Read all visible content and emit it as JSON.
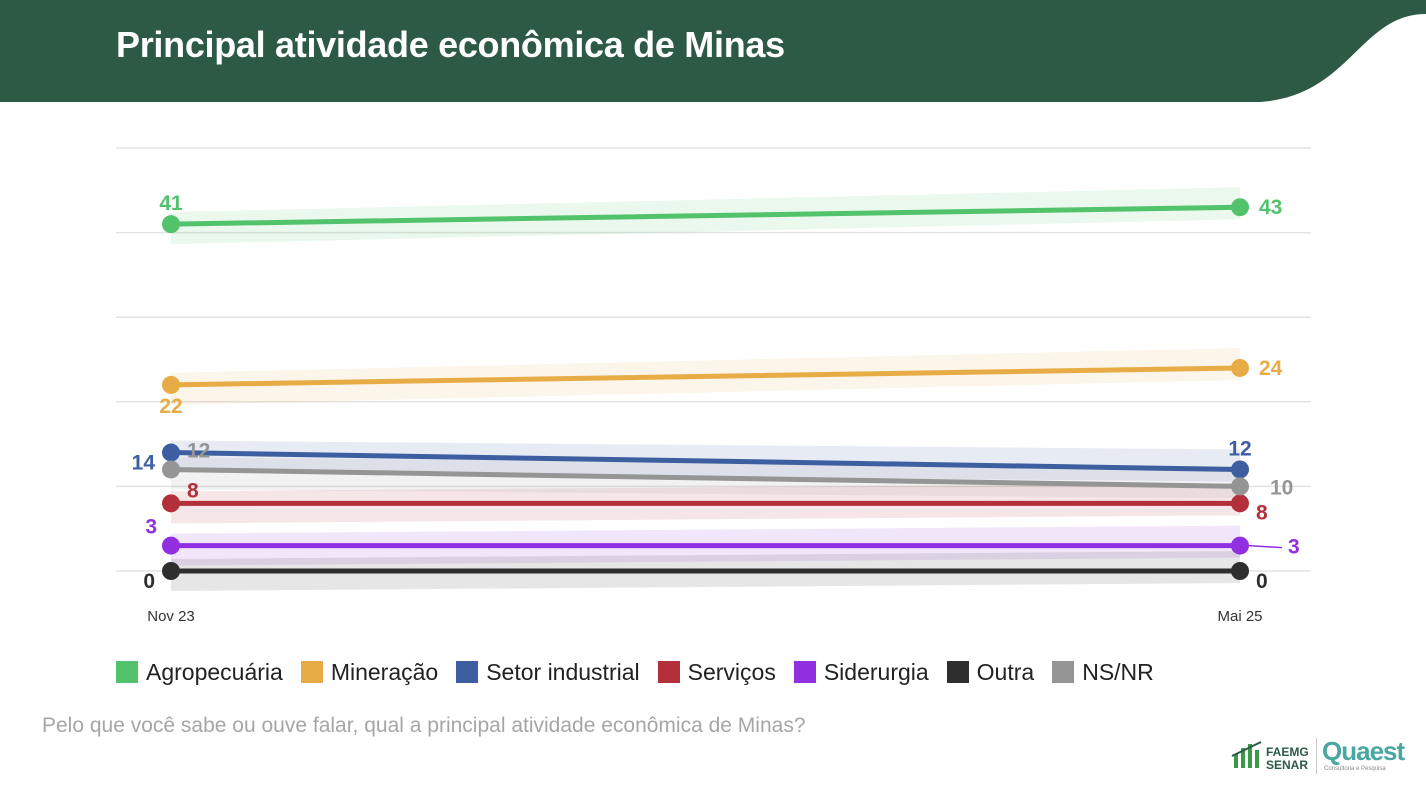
{
  "header": {
    "title": "Principal atividade econômica de Minas",
    "color": "#2c5a45"
  },
  "chart_data": {
    "type": "line",
    "x": [
      "Nov 23",
      "Mai 25"
    ],
    "ylim": [
      0,
      50
    ],
    "grid": true,
    "legend_position": "bottom",
    "series": [
      {
        "name": "Agropecuária",
        "values": [
          41,
          43
        ],
        "color": "#52c26b"
      },
      {
        "name": "Mineração",
        "values": [
          22,
          24
        ],
        "color": "#e8ac46"
      },
      {
        "name": "Setor industrial",
        "values": [
          14,
          12
        ],
        "color": "#3d5ea1"
      },
      {
        "name": "Serviços",
        "values": [
          8,
          8
        ],
        "color": "#b3303a"
      },
      {
        "name": "Siderurgia",
        "values": [
          3,
          3
        ],
        "color": "#9030e0"
      },
      {
        "name": "Outra",
        "values": [
          0,
          0
        ],
        "color": "#2e2e2e"
      },
      {
        "name": "NS/NR",
        "values": [
          12,
          10
        ],
        "color": "#959595"
      }
    ]
  },
  "footer": {
    "question": "Pelo que você sabe ou ouve falar, qual a principal atividade econômica de Minas?"
  },
  "logos": {
    "faemg_line1": "FAEMG",
    "faemg_line2": "SENAR",
    "quaest": "Quaest",
    "quaest_sub": "Consultoria e Pesquisa"
  }
}
